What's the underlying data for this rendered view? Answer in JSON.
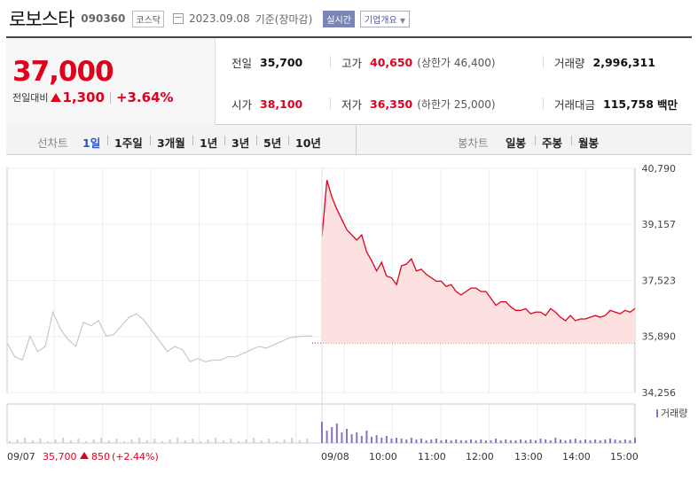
{
  "header": {
    "name": "로보스타",
    "code": "090360",
    "market": "코스닥",
    "date": "2023.09.08",
    "basis": "기준(장마감)",
    "realtime_label": "실시간",
    "company_label": "기업개요",
    "company_dropdown": "▼"
  },
  "price": {
    "current": "37,000",
    "change_label": "전일대비",
    "change": "1,300",
    "change_pct": "+3.64%"
  },
  "stats": {
    "prev_close_label": "전일",
    "prev_close": "35,700",
    "high_label": "고가",
    "high": "40,650",
    "upper_limit": "(상한가 46,400)",
    "volume_label": "거래량",
    "volume": "2,996,311",
    "open_label": "시가",
    "open": "38,100",
    "low_label": "저가",
    "low": "36,350",
    "lower_limit": "(하한가 25,000)",
    "amount_label": "거래대금",
    "amount": "115,758",
    "amount_unit": "백만"
  },
  "tabs": {
    "line_label": "선차트",
    "line_tabs": [
      "1일",
      "1주일",
      "3개월",
      "1년",
      "3년",
      "5년",
      "10년"
    ],
    "selected": "1일",
    "candle_label": "봉차트",
    "candle_tabs": [
      "일봉",
      "주봉",
      "월봉"
    ]
  },
  "chart": {
    "y_ticks": [
      "40,790",
      "39,157",
      "37,523",
      "35,890",
      "34,256"
    ],
    "volume_legend": "거래량",
    "x_labels": [
      "09/07",
      "09/08",
      "10:00",
      "11:00",
      "12:00",
      "13:00",
      "14:00",
      "15:00"
    ],
    "prev_day_summary": {
      "price": "35,700",
      "change": "850",
      "pct": "(+2.44%)"
    },
    "colors": {
      "up": "#e0001c",
      "prev": "#c8c8c8",
      "fill": "#fde0e0",
      "volume": "#8a72c8"
    }
  },
  "chart_data": {
    "type": "line",
    "ylim": [
      34256,
      40790
    ],
    "y_ticks": [
      40790,
      39157,
      37523,
      35890,
      34256
    ],
    "baseline": 35700,
    "series": [
      {
        "values": [
          35700,
          35300,
          35200,
          35900,
          35450,
          35600,
          36600,
          36100,
          35800,
          35600,
          36300,
          36200,
          36350,
          35900,
          35950,
          36200,
          36450,
          36550,
          36350,
          36050,
          35750,
          35450,
          35600,
          35500,
          35150,
          35250,
          35150,
          35200,
          35200,
          35300,
          35300,
          35400,
          35500,
          35600,
          35550,
          35650,
          35750,
          35850,
          35880,
          35900,
          35900
        ]
      },
      {
        "values": [
          38800,
          40450,
          39950,
          39600,
          39300,
          39000,
          38850,
          38700,
          38850,
          38350,
          38100,
          37800,
          38050,
          37650,
          37600,
          37400,
          37950,
          38000,
          38150,
          37800,
          37850,
          37700,
          37600,
          37500,
          37500,
          37350,
          37400,
          37200,
          37100,
          37200,
          37300,
          37300,
          37200,
          37200,
          37000,
          36800,
          36900,
          36900,
          36750,
          36650,
          36650,
          36700,
          36550,
          36600,
          36600,
          36500,
          36700,
          36600,
          36450,
          36350,
          36500,
          36350,
          36400,
          36400,
          36450,
          36500,
          36450,
          36500,
          36650,
          36600,
          36550,
          36650,
          36600,
          36700
        ]
      }
    ]
  }
}
